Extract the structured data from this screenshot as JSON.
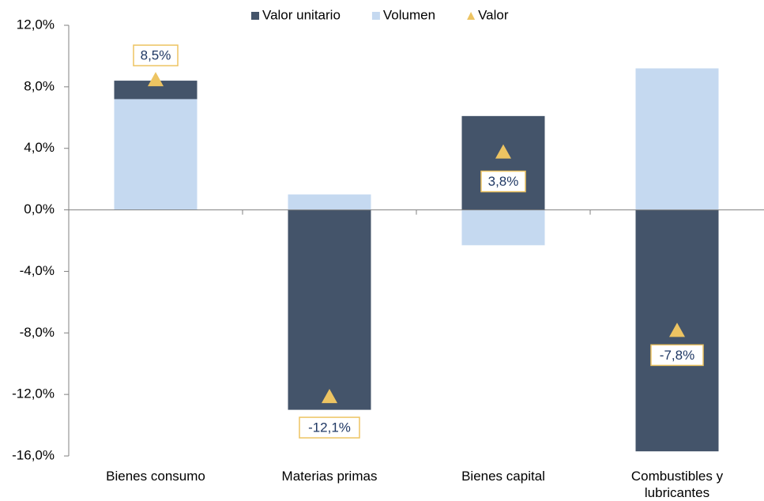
{
  "chart_data": {
    "type": "bar",
    "stacked": true,
    "categories": [
      "Bienes consumo",
      "Materias primas",
      "Bienes capital",
      "Combustibles y lubricantes"
    ],
    "series": [
      {
        "name": "Valor unitario",
        "color": "#44546a",
        "values": [
          1.2,
          -13.0,
          6.1,
          -15.7
        ]
      },
      {
        "name": "Volumen",
        "color": "#c5d9f0",
        "values": [
          7.2,
          1.0,
          -2.3,
          9.2
        ]
      },
      {
        "name": "Valor",
        "type": "marker",
        "color": "#edc462",
        "values": [
          8.5,
          -12.1,
          3.8,
          -7.8
        ],
        "value_labels": [
          "8,5%",
          "-12,1%",
          "3,8%",
          "-7,8%"
        ]
      }
    ],
    "ylim": [
      -16,
      12
    ],
    "yticks": [
      {
        "value": -16,
        "label": "-16,0%"
      },
      {
        "value": -12,
        "label": "-12,0%"
      },
      {
        "value": -8,
        "label": "-8,0%"
      },
      {
        "value": -4,
        "label": "-4,0%"
      },
      {
        "value": 0,
        "label": "0,0%"
      },
      {
        "value": 4,
        "label": "4,0%"
      },
      {
        "value": 8,
        "label": "8,0%"
      },
      {
        "value": 12,
        "label": "12,0%"
      }
    ],
    "legend": "top"
  }
}
